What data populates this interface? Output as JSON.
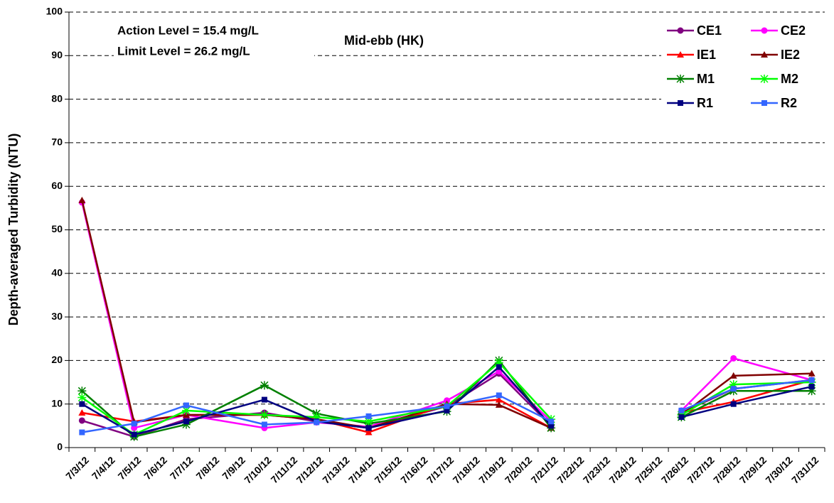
{
  "chart_data": {
    "type": "line",
    "title": "Mid-ebb (HK)",
    "annotations": [
      "Action Level = 15.4 mg/L",
      "Limit Level = 26.2 mg/L"
    ],
    "y_label": "Depth-averaged Turbidity (NTU)",
    "categories": [
      "7/3/12",
      "7/4/12",
      "7/5/12",
      "7/6/12",
      "7/7/12",
      "7/8/12",
      "7/9/12",
      "7/10/12",
      "7/11/12",
      "7/12/12",
      "7/13/12",
      "7/14/12",
      "7/15/12",
      "7/16/12",
      "7/17/12",
      "7/18/12",
      "7/19/12",
      "7/20/12",
      "7/21/12",
      "7/22/12",
      "7/23/12",
      "7/24/12",
      "7/25/12",
      "7/26/12",
      "7/27/12",
      "7/28/12",
      "7/29/12",
      "7/30/12",
      "7/31/12"
    ],
    "x": [
      "7/3/12",
      "7/5/12",
      "7/7/12",
      "7/10/12",
      "7/12/12",
      "7/14/12",
      "7/17/12",
      "7/19/12",
      "7/21/12",
      "7/24/12",
      "7/26/12",
      "7/28/12",
      "7/31/12"
    ],
    "series": [
      {
        "name": "CE1",
        "color": "#800080",
        "marker": "circle",
        "values": [
          6.2,
          2.5,
          6.5,
          8,
          6,
          4.5,
          9.5,
          17,
          5,
          null,
          8,
          13.5,
          15.5
        ]
      },
      {
        "name": "CE2",
        "color": "#ff00ff",
        "marker": "circle",
        "values": [
          56.3,
          4.5,
          7.5,
          4.5,
          5.8,
          4.8,
          10.8,
          17.5,
          6,
          null,
          8.5,
          20.5,
          15.5
        ]
      },
      {
        "name": "IE1",
        "color": "#ff0000",
        "marker": "triangle",
        "values": [
          8,
          6,
          7.5,
          7.5,
          6.5,
          3.5,
          10,
          11,
          4.5,
          null,
          8,
          10.5,
          15.5
        ]
      },
      {
        "name": "IE2",
        "color": "#800000",
        "marker": "triangle",
        "values": [
          56.8,
          5.8,
          7.5,
          7.5,
          6.5,
          4.5,
          10,
          9.8,
          4.5,
          null,
          7.5,
          16.5,
          17
        ]
      },
      {
        "name": "M1",
        "color": "#008000",
        "marker": "star",
        "values": [
          13,
          2.5,
          5.3,
          14.3,
          7.8,
          5.5,
          8.3,
          20,
          4.5,
          null,
          7,
          13,
          13
        ]
      },
      {
        "name": "M2",
        "color": "#00ff00",
        "marker": "star",
        "values": [
          11.5,
          3,
          8.5,
          7.5,
          7,
          6,
          9.5,
          19.5,
          6.5,
          null,
          7.5,
          14.5,
          15
        ]
      },
      {
        "name": "R1",
        "color": "#000080",
        "marker": "square",
        "values": [
          10,
          3,
          6,
          11,
          6,
          4.5,
          8.5,
          18.5,
          5,
          null,
          7,
          10,
          14
        ]
      },
      {
        "name": "R2",
        "color": "#3366ff",
        "marker": "square",
        "values": [
          3.5,
          5.5,
          9.7,
          5.3,
          5.8,
          7.2,
          9.5,
          12,
          6,
          null,
          8.5,
          13.5,
          15.5
        ]
      }
    ],
    "ylim": [
      0,
      100
    ],
    "yticks": [
      0,
      10,
      20,
      30,
      40,
      50,
      60,
      70,
      80,
      90,
      100
    ],
    "grid": true
  }
}
